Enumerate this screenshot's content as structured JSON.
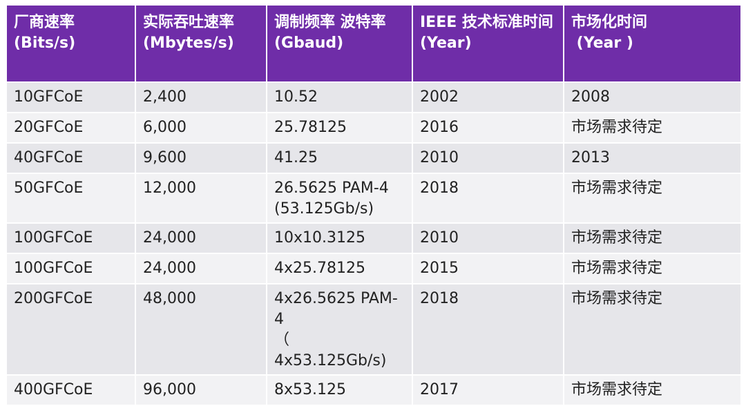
{
  "table": {
    "header": [
      "厂商速率\n(Bits/s)",
      "实际吞吐速率\n(Mbytes/s)",
      "调制频率 波特率\n(Gbaud)",
      "IEEE 技术标准时间\n(Year)",
      "市场化时间\n (Year )"
    ],
    "rows": [
      [
        "10GFCoE",
        "2,400",
        "10.52",
        "2002",
        "2008"
      ],
      [
        "20GFCoE",
        "6,000",
        "25.78125",
        "2016",
        "市场需求待定"
      ],
      [
        "40GFCoE",
        "9,600",
        "41.25",
        "2010",
        "2013"
      ],
      [
        "50GFCoE",
        "12,000",
        "26.5625 PAM-4\n(53.125Gb/s)",
        "2018",
        "市场需求待定"
      ],
      [
        "100GFCoE",
        "24,000",
        "10x10.3125",
        "2010",
        "市场需求待定"
      ],
      [
        "100GFCoE",
        "24,000",
        "4x25.78125",
        "2015",
        "市场需求待定"
      ],
      [
        "200GFCoE",
        "48,000",
        "4x26.5625 PAM-4\n（ 4x53.125Gb/s)",
        "2018",
        "市场需求待定"
      ],
      [
        "400GFCoE",
        "96,000",
        "8x53.125",
        "2017",
        "市场需求待定"
      ]
    ]
  }
}
